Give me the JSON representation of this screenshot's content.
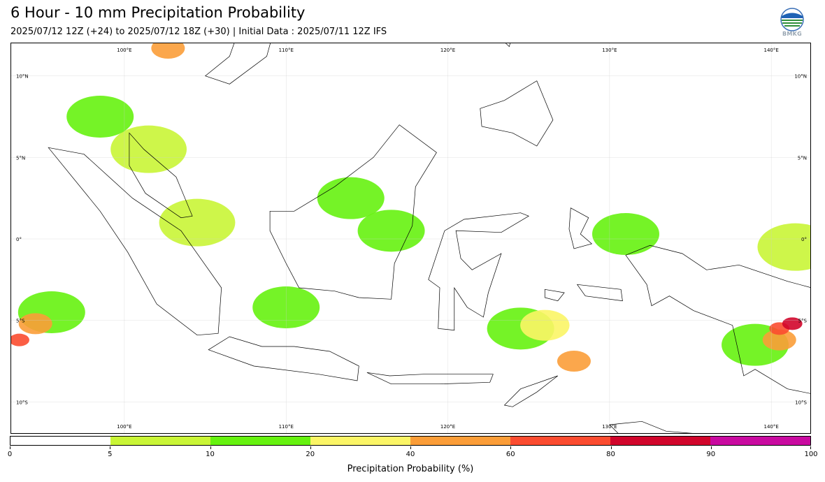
{
  "title": "6 Hour - 10 mm Precipitation Probability",
  "subtitle": "2025/07/12 12Z (+24) to 2025/07/12 18Z (+30) | Initial Data : 2025/07/11 12Z IFS",
  "logo": {
    "icon": "bmkg-logo",
    "text": "BMKG"
  },
  "map": {
    "region": "Indonesia",
    "lon_range": [
      93,
      142.5
    ],
    "lat_range": [
      -12,
      12
    ],
    "gridlines": true,
    "lon_ticks": [
      {
        "lon": 100,
        "label": "100°E"
      },
      {
        "lon": 110,
        "label": "110°E"
      },
      {
        "lon": 120,
        "label": "120°E"
      },
      {
        "lon": 130,
        "label": "130°E"
      },
      {
        "lon": 140,
        "label": "140°E"
      }
    ],
    "lat_ticks": [
      {
        "lat": 10,
        "label": "10°N"
      },
      {
        "lat": 5,
        "label": "5°N"
      },
      {
        "lat": 0,
        "label": "0°"
      },
      {
        "lat": -5,
        "label": "5°S"
      },
      {
        "lat": -10,
        "label": "10°S"
      }
    ],
    "precip_areas": [
      {
        "lon": 95.5,
        "lat": -4.5,
        "level": 10
      },
      {
        "lon": 94.5,
        "lat": -5.2,
        "level": 40
      },
      {
        "lon": 93.5,
        "lat": -6.2,
        "level": 60
      },
      {
        "lon": 98.5,
        "lat": 7.5,
        "level": 10
      },
      {
        "lon": 102.7,
        "lat": 11.7,
        "level": 40
      },
      {
        "lon": 101.5,
        "lat": 5.5,
        "level": 5
      },
      {
        "lon": 104.5,
        "lat": 1,
        "level": 5
      },
      {
        "lon": 114,
        "lat": 2.5,
        "level": 10
      },
      {
        "lon": 116.5,
        "lat": 0.5,
        "level": 10
      },
      {
        "lon": 110,
        "lat": -4.2,
        "level": 10
      },
      {
        "lon": 124.5,
        "lat": -5.5,
        "level": 10
      },
      {
        "lon": 126,
        "lat": -5.3,
        "level": 20
      },
      {
        "lon": 127.8,
        "lat": -7.5,
        "level": 40
      },
      {
        "lon": 131,
        "lat": 0.3,
        "level": 10
      },
      {
        "lon": 139,
        "lat": -6.5,
        "level": 10
      },
      {
        "lon": 140.5,
        "lat": -6.2,
        "level": 40
      },
      {
        "lon": 140.5,
        "lat": -5.5,
        "level": 60
      },
      {
        "lon": 141.3,
        "lat": -5.2,
        "level": 80
      },
      {
        "lon": 141.5,
        "lat": -0.5,
        "level": 5
      }
    ]
  },
  "colorbar": {
    "label": "Precipitation Probability (%)",
    "ticks": [
      "0",
      "5",
      "10",
      "20",
      "40",
      "60",
      "80",
      "90",
      "100"
    ],
    "colors": [
      "#ffffff",
      "#c9f536",
      "#66f20f",
      "#fbf566",
      "#fb9d38",
      "#fb4c30",
      "#d1052b",
      "#c90aa0"
    ]
  }
}
